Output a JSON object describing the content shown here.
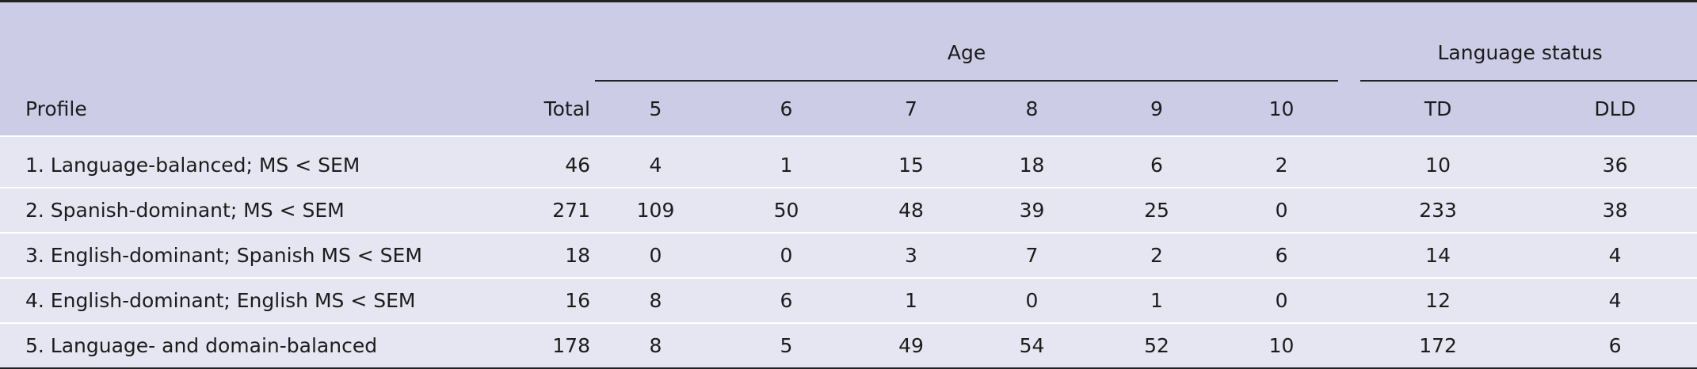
{
  "table": {
    "group_headers": {
      "age": "Age",
      "language_status": "Language status"
    },
    "columns": {
      "profile": "Profile",
      "total": "Total",
      "age_5": "5",
      "age_6": "6",
      "age_7": "7",
      "age_8": "8",
      "age_9": "9",
      "age_10": "10",
      "td": "TD",
      "dld": "DLD"
    },
    "rows": [
      {
        "profile": "1. Language-balanced; MS < SEM",
        "total": "46",
        "a5": "4",
        "a6": "1",
        "a7": "15",
        "a8": "18",
        "a9": "6",
        "a10": "2",
        "td": "10",
        "dld": "36"
      },
      {
        "profile": "2. Spanish-dominant; MS < SEM",
        "total": "271",
        "a5": "109",
        "a6": "50",
        "a7": "48",
        "a8": "39",
        "a9": "25",
        "a10": "0",
        "td": "233",
        "dld": "38"
      },
      {
        "profile": "3. English-dominant; Spanish MS < SEM",
        "total": "18",
        "a5": "0",
        "a6": "0",
        "a7": "3",
        "a8": "7",
        "a9": "2",
        "a10": "6",
        "td": "14",
        "dld": "4"
      },
      {
        "profile": "4. English-dominant; English MS < SEM",
        "total": "16",
        "a5": "8",
        "a6": "6",
        "a7": "1",
        "a8": "0",
        "a9": "1",
        "a10": "0",
        "td": "12",
        "dld": "4"
      },
      {
        "profile": "5. Language- and domain-balanced",
        "total": "178",
        "a5": "8",
        "a6": "5",
        "a7": "49",
        "a8": "54",
        "a9": "52",
        "a10": "10",
        "td": "172",
        "dld": "6"
      }
    ]
  }
}
